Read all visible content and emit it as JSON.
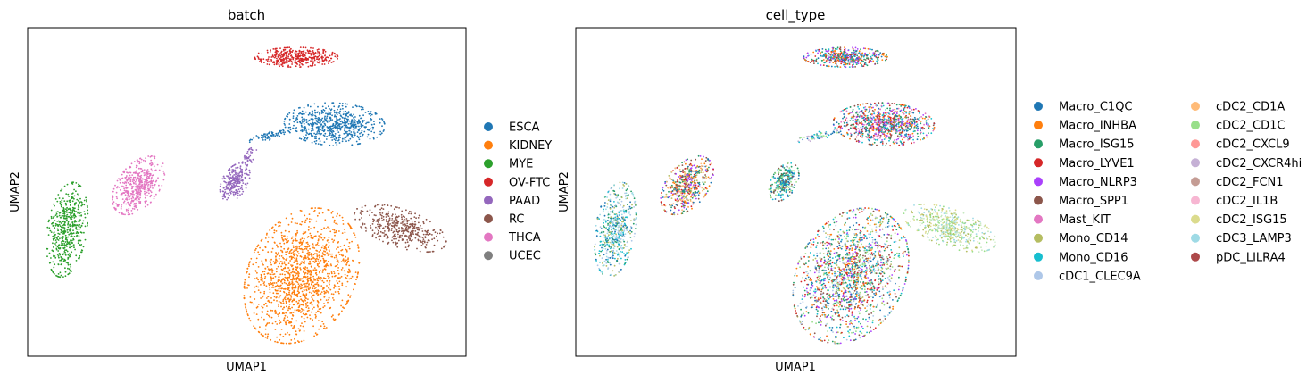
{
  "chart_data": [
    {
      "type": "scatter",
      "title": "batch",
      "xlabel": "UMAP1",
      "ylabel": "UMAP2",
      "grid": false,
      "ticks": false,
      "xlim": [
        0,
        100
      ],
      "ylim": [
        0,
        100
      ],
      "legend_placement": "right",
      "series": [
        {
          "name": "ESCA",
          "color": "#1f77b4",
          "clusters": [
            {
              "cx": 70,
              "cy": 70.6,
              "rx": 11.5,
              "ry": 6.5,
              "angle": -4,
              "n": 650
            },
            {
              "cx": 55,
              "cy": 67,
              "rx": 5,
              "ry": 1.2,
              "angle": 18,
              "n": 70
            }
          ]
        },
        {
          "name": "KIDNEY",
          "color": "#ff7f0e",
          "clusters": [
            {
              "cx": 62.5,
              "cy": 24.5,
              "rx": 12.5,
              "ry": 21,
              "angle": -14,
              "n": 1400
            }
          ]
        },
        {
          "name": "MYE",
          "color": "#2ca02c",
          "clusters": [
            {
              "cx": 9,
              "cy": 38.5,
              "rx": 4.5,
              "ry": 14.5,
              "angle": -6,
              "n": 520
            }
          ]
        },
        {
          "name": "OV-FTC",
          "color": "#d62728",
          "clusters": [
            {
              "cx": 61.3,
              "cy": 91,
              "rx": 9.5,
              "ry": 3,
              "angle": 0,
              "n": 420
            }
          ]
        },
        {
          "name": "PAAD",
          "color": "#9467bd",
          "clusters": [
            {
              "cx": 47.3,
              "cy": 53,
              "rx": 3,
              "ry": 6,
              "angle": -18,
              "n": 260
            },
            {
              "cx": 50.5,
              "cy": 61,
              "rx": 1.5,
              "ry": 3,
              "angle": -20,
              "n": 40
            }
          ]
        },
        {
          "name": "RC",
          "color": "#8c564b",
          "clusters": [
            {
              "cx": 85,
              "cy": 39,
              "rx": 11.5,
              "ry": 5.5,
              "angle": -28,
              "n": 420
            }
          ]
        },
        {
          "name": "THCA",
          "color": "#e377c2",
          "clusters": [
            {
              "cx": 25.3,
              "cy": 52,
              "rx": 5,
              "ry": 9.5,
              "angle": -24,
              "n": 480
            }
          ]
        },
        {
          "name": "UCEC",
          "color": "#7f7f7f",
          "clusters": []
        }
      ]
    },
    {
      "type": "scatter",
      "title": "cell_type",
      "xlabel": "UMAP1",
      "ylabel": "UMAP2",
      "grid": false,
      "ticks": false,
      "xlim": [
        0,
        100
      ],
      "ylim": [
        0,
        100
      ],
      "legend_placement": "right (2 columns)",
      "series": [
        {
          "name": "Macro_C1QC",
          "color": "#1f77b4"
        },
        {
          "name": "Macro_INHBA",
          "color": "#ff7f0e"
        },
        {
          "name": "Macro_ISG15",
          "color": "#279e68"
        },
        {
          "name": "Macro_LYVE1",
          "color": "#d62728"
        },
        {
          "name": "Macro_NLRP3",
          "color": "#aa40fc"
        },
        {
          "name": "Macro_SPP1",
          "color": "#8c564b"
        },
        {
          "name": "Mast_KIT",
          "color": "#e377c2"
        },
        {
          "name": "Mono_CD14",
          "color": "#b5bd61"
        },
        {
          "name": "Mono_CD16",
          "color": "#17becf"
        },
        {
          "name": "cDC1_CLEC9A",
          "color": "#aec7e8"
        },
        {
          "name": "cDC2_CD1A",
          "color": "#ffbb78"
        },
        {
          "name": "cDC2_CD1C",
          "color": "#98df8a"
        },
        {
          "name": "cDC2_CXCL9",
          "color": "#ff9896"
        },
        {
          "name": "cDC2_CXCR4hi",
          "color": "#c5b0d5"
        },
        {
          "name": "cDC2_FCN1",
          "color": "#c49c94"
        },
        {
          "name": "cDC2_IL1B",
          "color": "#f7b6d2"
        },
        {
          "name": "cDC2_ISG15",
          "color": "#dbdb8d"
        },
        {
          "name": "cDC3_LAMP3",
          "color": "#9edae5"
        },
        {
          "name": "pDC_LILRA4",
          "color": "#ad494a"
        }
      ],
      "clusters": [
        {
          "cx": 70,
          "cy": 70.6,
          "rx": 11.5,
          "ry": 6.5,
          "angle": -4,
          "n": 900,
          "mix": [
            "#1f77b4",
            "#ff7f0e",
            "#d62728",
            "#aa40fc",
            "#8c564b",
            "#279e68",
            "#e377c2",
            "#17becf"
          ]
        },
        {
          "cx": 55,
          "cy": 67,
          "rx": 5,
          "ry": 1.2,
          "angle": 18,
          "n": 60,
          "mix": [
            "#98df8a",
            "#1f77b4",
            "#c5b0d5",
            "#17becf"
          ]
        },
        {
          "cx": 62.5,
          "cy": 24.5,
          "rx": 12.5,
          "ry": 21,
          "angle": -14,
          "n": 1700,
          "mix": [
            "#17becf",
            "#1f77b4",
            "#279e68",
            "#ff7f0e",
            "#b5bd61",
            "#d62728",
            "#98df8a",
            "#aec7e8",
            "#aa40fc",
            "#8c564b"
          ]
        },
        {
          "cx": 85,
          "cy": 39,
          "rx": 11.5,
          "ry": 5.5,
          "angle": -28,
          "n": 520,
          "mix": [
            "#dbdb8d",
            "#98df8a",
            "#c7e9c0",
            "#b5bd61",
            "#9edae5"
          ]
        },
        {
          "cx": 9,
          "cy": 38.5,
          "rx": 4.5,
          "ry": 14.5,
          "angle": -6,
          "n": 560,
          "mix": [
            "#17becf",
            "#9edae5",
            "#1f77b4",
            "#b5bd61",
            "#279e68",
            "#aec7e8"
          ]
        },
        {
          "cx": 61.3,
          "cy": 91,
          "rx": 9.5,
          "ry": 3,
          "angle": 0,
          "n": 450,
          "mix": [
            "#1f77b4",
            "#8c564b",
            "#ff7f0e",
            "#279e68",
            "#aa40fc",
            "#d62728",
            "#17becf"
          ]
        },
        {
          "cx": 47.3,
          "cy": 53,
          "rx": 3,
          "ry": 6,
          "angle": -18,
          "n": 280,
          "mix": [
            "#1f77b4",
            "#279e68",
            "#98df8a",
            "#17becf",
            "#8c564b"
          ]
        },
        {
          "cx": 25.3,
          "cy": 52,
          "rx": 5,
          "ry": 9.5,
          "angle": -24,
          "n": 520,
          "mix": [
            "#ff7f0e",
            "#ffbb78",
            "#aa40fc",
            "#1f77b4",
            "#b5bd61",
            "#8c564b",
            "#279e68",
            "#d62728"
          ]
        }
      ]
    }
  ]
}
